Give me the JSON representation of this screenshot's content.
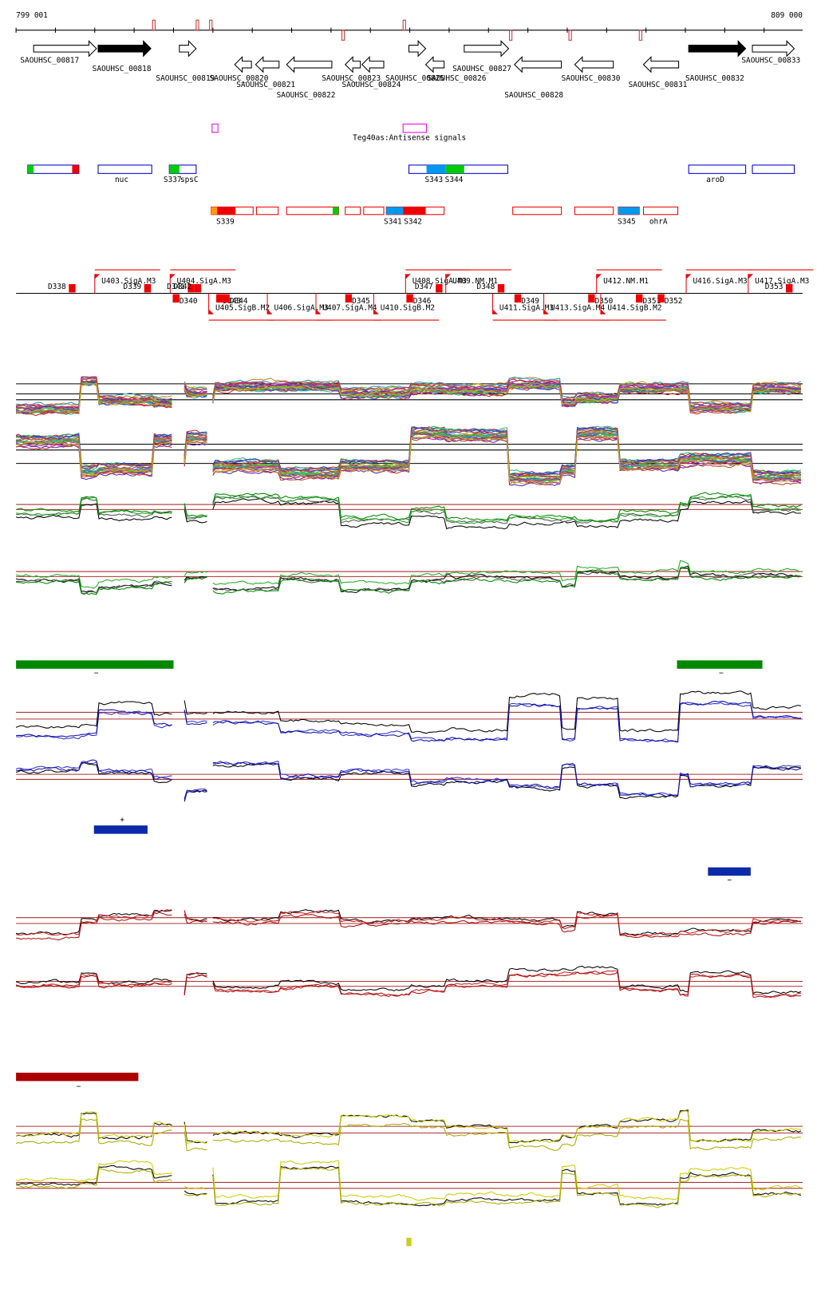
{
  "header": {
    "start": "799 001",
    "end": "809 000"
  },
  "genes": [
    "SAOUHSC_00817",
    "SAOUHSC_00818",
    "SAOUHSC_00819",
    "SAOUHSC_00820",
    "SAOUHSC_00821",
    "SAOUHSC_00822",
    "SAOUHSC_00823",
    "SAOUHSC_00824",
    "SAOUHSC_00825",
    "SAOUHSC_00826",
    "SAOUHSC_00827",
    "SAOUHSC_00828",
    "SAOUHSC_00830",
    "SAOUHSC_00831",
    "SAOUHSC_00832",
    "SAOUHSC_00833"
  ],
  "antisense": {
    "label": "Teg40as:Antisense signals"
  },
  "features": [
    "nuc",
    "S337",
    "spsC",
    "S343",
    "S344",
    "aroD",
    "S339",
    "S341",
    "S342",
    "S345",
    "ohrA"
  ],
  "promoters": [
    "D338",
    "U403.SigA.M3",
    "D339",
    "U404.SigA.M3",
    "D341",
    "D342",
    "U408.SigA.M3",
    "U409.NM.M1",
    "D347",
    "D348",
    "U412.NM.M1",
    "U416.SigA.M3",
    "U417.SigA.M3",
    "D353",
    "D340",
    "D343",
    "D344",
    "D345",
    "D346",
    "D349",
    "D350",
    "D351",
    "D352",
    "U405.SigB.M2",
    "U406.SigA.M3",
    "U407.SigA.M4",
    "U410.SigB.M2",
    "U411.SigA.M3",
    "U413.SigA.M4",
    "U414.SigB.M2"
  ],
  "strand_bars": [
    "−",
    "−",
    "+",
    "−",
    "−"
  ]
}
